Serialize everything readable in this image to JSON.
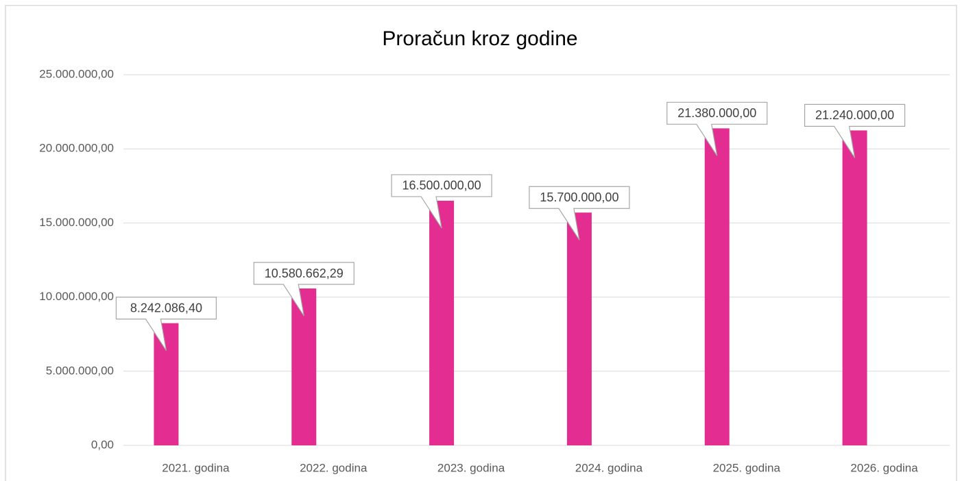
{
  "chart_data": {
    "type": "bar",
    "title": "Proračun kroz godine",
    "categories": [
      "2021. godina",
      "2022. godina",
      "2023. godina",
      "2024. godina",
      "2025. godina",
      "2026. godina"
    ],
    "values": [
      8242086.4,
      10580662.29,
      16500000,
      15700000,
      21380000,
      21240000
    ],
    "value_labels": [
      "8.242.086,40",
      "10.580.662,29",
      "16.500.000,00",
      "15.700.000,00",
      "21.380.000,00",
      "21.240.000,00"
    ],
    "color": "#e32d91",
    "ylim": [
      0,
      25000000
    ],
    "yticks": [
      {
        "value": 0,
        "label": "0,00"
      },
      {
        "value": 5000000,
        "label": "5.000.000,00"
      },
      {
        "value": 10000000,
        "label": "10.000.000,00"
      },
      {
        "value": 15000000,
        "label": "15.000.000,00"
      },
      {
        "value": 20000000,
        "label": "20.000.000,00"
      },
      {
        "value": 25000000,
        "label": "25.000.000,00"
      }
    ],
    "grid": true
  }
}
